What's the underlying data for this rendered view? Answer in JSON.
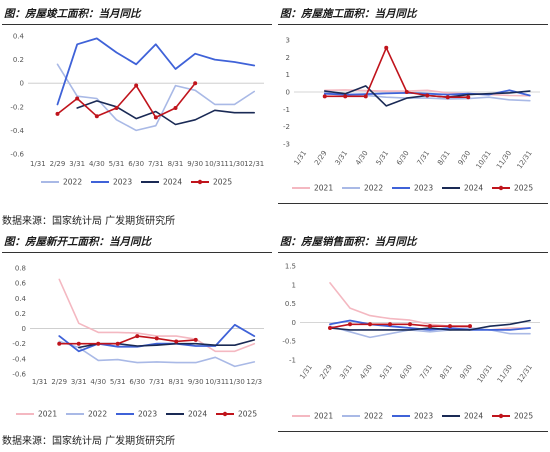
{
  "source_label": "数据来源：国家统计局 广发期货研究所",
  "colors": {
    "2021": "#f4b8c1",
    "2022": "#a9b9e6",
    "2023": "#3f62d8",
    "2024": "#1a2a55",
    "2025": "#c0141c"
  },
  "chart_data": [
    {
      "type": "line",
      "title": "图：房屋竣工面积：当月同比",
      "ylim": [
        -0.6,
        0.4
      ],
      "yticks": [
        "0.4",
        "0.2",
        "0",
        "-0.2",
        "-0.4",
        "-0.6"
      ],
      "ytick_values": [
        0.4,
        0.2,
        0,
        -0.2,
        -0.4,
        -0.6
      ],
      "categories": [
        "1/31",
        "2/29",
        "3/31",
        "4/30",
        "5/31",
        "6/30",
        "7/31",
        "8/31",
        "9/30",
        "10/31",
        "11/30",
        "12/31"
      ],
      "x_rotated": false,
      "series": [
        {
          "name": "2022",
          "values": [
            null,
            0.16,
            -0.11,
            -0.13,
            -0.31,
            -0.4,
            -0.36,
            -0.02,
            -0.06,
            -0.18,
            -0.18,
            -0.07
          ]
        },
        {
          "name": "2023",
          "values": [
            null,
            -0.18,
            0.33,
            0.38,
            0.26,
            0.16,
            0.33,
            0.12,
            0.25,
            0.2,
            0.18,
            0.15
          ]
        },
        {
          "name": "2024",
          "values": [
            null,
            null,
            -0.21,
            -0.15,
            -0.2,
            -0.3,
            -0.24,
            -0.35,
            -0.31,
            -0.23,
            -0.25,
            -0.25
          ]
        },
        {
          "name": "2025",
          "values": [
            null,
            -0.26,
            -0.13,
            -0.28,
            -0.21,
            -0.02,
            -0.29,
            -0.21,
            0.0,
            null,
            null,
            null
          ]
        }
      ],
      "legend": [
        "2022",
        "2023",
        "2024",
        "2025"
      ]
    },
    {
      "type": "line",
      "title": "图：房屋施工面积：当月同比",
      "ylim": [
        -3,
        3
      ],
      "yticks": [
        "3",
        "2",
        "1",
        "0",
        "-1",
        "-2",
        "-3"
      ],
      "ytick_values": [
        3,
        2,
        1,
        0,
        -1,
        -2,
        -3
      ],
      "categories": [
        "1/31",
        "2/29",
        "3/31",
        "4/30",
        "5/31",
        "6/30",
        "7/31",
        "8/31",
        "9/30",
        "10/31",
        "11/30",
        "12/31"
      ],
      "x_rotated": true,
      "series": [
        {
          "name": "2021",
          "values": [
            null,
            0.1,
            0.12,
            0.08,
            0.05,
            0.06,
            0.1,
            -0.05,
            -0.1,
            -0.15,
            -0.2,
            -0.22
          ]
        },
        {
          "name": "2022",
          "values": [
            null,
            -0.05,
            -0.15,
            -0.2,
            -0.3,
            -0.35,
            -0.35,
            -0.4,
            -0.38,
            -0.3,
            -0.45,
            -0.5
          ]
        },
        {
          "name": "2023",
          "values": [
            null,
            -0.1,
            -0.15,
            -0.12,
            -0.08,
            -0.05,
            -0.1,
            -0.15,
            -0.1,
            -0.15,
            0.1,
            -0.2
          ]
        },
        {
          "name": "2024",
          "values": [
            null,
            0.05,
            -0.1,
            0.35,
            -0.8,
            -0.35,
            -0.2,
            -0.3,
            -0.15,
            -0.1,
            -0.05,
            0.05
          ]
        },
        {
          "name": "2025",
          "values": [
            null,
            -0.25,
            -0.25,
            -0.25,
            2.55,
            0.0,
            -0.2,
            -0.3,
            -0.3,
            null,
            null,
            null
          ]
        }
      ],
      "legend": [
        "2021",
        "2022",
        "2023",
        "2024",
        "2025"
      ]
    },
    {
      "type": "line",
      "title": "图：房屋新开工面积：当月同比",
      "ylim": [
        -0.6,
        0.8
      ],
      "yticks": [
        "0.8",
        "0.6",
        "0.4",
        "0.2",
        "0",
        "-0.2",
        "-0.4",
        "-0.6"
      ],
      "ytick_values": [
        0.8,
        0.6,
        0.4,
        0.2,
        0,
        -0.2,
        -0.4,
        -0.6
      ],
      "categories": [
        "1/31",
        "2/29",
        "3/31",
        "4/30",
        "5/31",
        "6/30",
        "7/31",
        "8/31",
        "9/30",
        "10/31",
        "11/30",
        "12/3"
      ],
      "x_rotated": false,
      "series": [
        {
          "name": "2021",
          "values": [
            null,
            0.65,
            0.07,
            -0.05,
            -0.05,
            -0.06,
            -0.1,
            -0.1,
            -0.14,
            -0.3,
            -0.3,
            -0.2
          ]
        },
        {
          "name": "2022",
          "values": [
            null,
            -0.17,
            -0.25,
            -0.42,
            -0.41,
            -0.45,
            -0.44,
            -0.45,
            -0.45,
            -0.38,
            -0.5,
            -0.44
          ]
        },
        {
          "name": "2023",
          "values": [
            null,
            -0.1,
            -0.3,
            -0.2,
            -0.24,
            -0.24,
            -0.2,
            -0.2,
            -0.23,
            -0.23,
            0.05,
            -0.1
          ]
        },
        {
          "name": "2024",
          "values": [
            null,
            null,
            -0.25,
            -0.2,
            -0.2,
            -0.23,
            -0.22,
            -0.2,
            -0.2,
            -0.22,
            -0.22,
            -0.15
          ]
        },
        {
          "name": "2025",
          "values": [
            null,
            -0.2,
            -0.2,
            -0.2,
            -0.2,
            -0.1,
            -0.13,
            -0.17,
            -0.15,
            null,
            null,
            null
          ]
        }
      ],
      "legend": [
        "2021",
        "2022",
        "2023",
        "2024",
        "2025"
      ]
    },
    {
      "type": "line",
      "title": "图：房屋销售面积：当月同比",
      "ylim": [
        -1,
        1.5
      ],
      "yticks": [
        "1.5",
        "1",
        "0.5",
        "0",
        "-0.5",
        "-1"
      ],
      "ytick_values": [
        1.5,
        1,
        0.5,
        0,
        -0.5,
        -1
      ],
      "categories": [
        "1/31",
        "2/29",
        "3/31",
        "4/30",
        "5/31",
        "6/30",
        "7/31",
        "8/31",
        "9/30",
        "10/31",
        "11/30",
        "12/31"
      ],
      "x_rotated": true,
      "series": [
        {
          "name": "2021",
          "values": [
            null,
            1.05,
            0.38,
            0.18,
            0.1,
            0.06,
            -0.05,
            -0.1,
            -0.15,
            -0.2,
            -0.15,
            -0.15
          ]
        },
        {
          "name": "2022",
          "values": [
            null,
            -0.1,
            -0.25,
            -0.4,
            -0.3,
            -0.2,
            -0.25,
            -0.2,
            -0.15,
            -0.2,
            -0.3,
            -0.3
          ]
        },
        {
          "name": "2023",
          "values": [
            null,
            -0.05,
            0.05,
            -0.05,
            -0.1,
            -0.15,
            -0.2,
            -0.15,
            -0.2,
            -0.2,
            -0.2,
            -0.15
          ]
        },
        {
          "name": "2024",
          "values": [
            null,
            -0.15,
            -0.2,
            -0.2,
            -0.2,
            -0.2,
            -0.15,
            -0.2,
            -0.2,
            -0.1,
            -0.05,
            0.05
          ]
        },
        {
          "name": "2025",
          "values": [
            null,
            -0.15,
            -0.05,
            -0.05,
            -0.05,
            -0.05,
            -0.1,
            -0.1,
            -0.1,
            null,
            null,
            null
          ]
        }
      ],
      "legend": [
        "2021",
        "2022",
        "2023",
        "2024",
        "2025"
      ]
    }
  ]
}
